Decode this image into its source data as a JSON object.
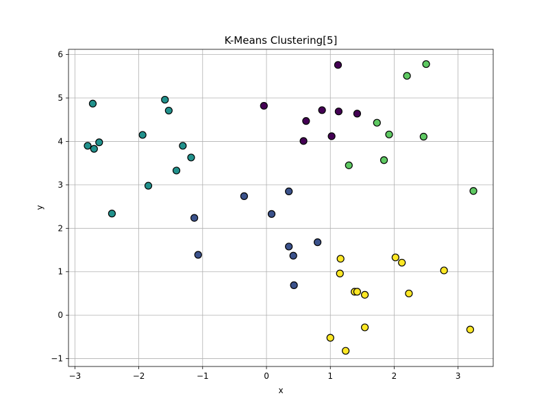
{
  "chart_data": {
    "type": "scatter",
    "title": "K-Means Clustering[5]",
    "xlabel": "x",
    "ylabel": "y",
    "xlim": [
      -3.1,
      3.55
    ],
    "ylim": [
      -1.18,
      6.12
    ],
    "xticks": [
      -3,
      -2,
      -1,
      0,
      1,
      2,
      3
    ],
    "yticks": [
      -1,
      0,
      1,
      2,
      3,
      4,
      5,
      6
    ],
    "xtick_labels": [
      "−3",
      "−2",
      "−1",
      "0",
      "1",
      "2",
      "3"
    ],
    "ytick_labels": [
      "−1",
      "0",
      "1",
      "2",
      "3",
      "4",
      "5",
      "6"
    ],
    "grid": true,
    "legend": "none",
    "series": [
      {
        "color": "#440154",
        "points": [
          [
            1.12,
            5.76
          ],
          [
            -0.04,
            4.82
          ],
          [
            0.87,
            4.72
          ],
          [
            1.13,
            4.69
          ],
          [
            1.42,
            4.64
          ],
          [
            0.62,
            4.47
          ],
          [
            1.02,
            4.12
          ],
          [
            0.58,
            4.01
          ]
        ]
      },
      {
        "color": "#3b528b",
        "points": [
          [
            0.35,
            2.85
          ],
          [
            -0.35,
            2.74
          ],
          [
            0.08,
            2.33
          ],
          [
            -1.13,
            2.24
          ],
          [
            0.8,
            1.68
          ],
          [
            0.35,
            1.58
          ],
          [
            0.42,
            1.37
          ],
          [
            -1.07,
            1.39
          ],
          [
            0.43,
            0.69
          ]
        ]
      },
      {
        "color": "#21918c",
        "points": [
          [
            -1.59,
            4.96
          ],
          [
            -2.72,
            4.87
          ],
          [
            -1.53,
            4.71
          ],
          [
            -1.94,
            4.15
          ],
          [
            -2.62,
            3.98
          ],
          [
            -2.8,
            3.9
          ],
          [
            -1.31,
            3.9
          ],
          [
            -2.7,
            3.83
          ],
          [
            -1.18,
            3.63
          ],
          [
            -1.41,
            3.33
          ],
          [
            -1.85,
            2.98
          ],
          [
            -2.42,
            2.34
          ]
        ]
      },
      {
        "color": "#5ec962",
        "points": [
          [
            2.5,
            5.78
          ],
          [
            2.2,
            5.51
          ],
          [
            1.73,
            4.43
          ],
          [
            1.92,
            4.16
          ],
          [
            2.46,
            4.11
          ],
          [
            1.84,
            3.57
          ],
          [
            1.29,
            3.45
          ],
          [
            3.24,
            2.86
          ]
        ]
      },
      {
        "color": "#fde725",
        "points": [
          [
            2.02,
            1.33
          ],
          [
            1.16,
            1.3
          ],
          [
            2.12,
            1.21
          ],
          [
            2.78,
            1.03
          ],
          [
            1.15,
            0.96
          ],
          [
            1.38,
            0.54
          ],
          [
            1.42,
            0.54
          ],
          [
            1.54,
            0.47
          ],
          [
            2.23,
            0.5
          ],
          [
            1.54,
            -0.28
          ],
          [
            3.19,
            -0.33
          ],
          [
            1.0,
            -0.52
          ],
          [
            1.24,
            -0.82
          ]
        ]
      }
    ]
  }
}
